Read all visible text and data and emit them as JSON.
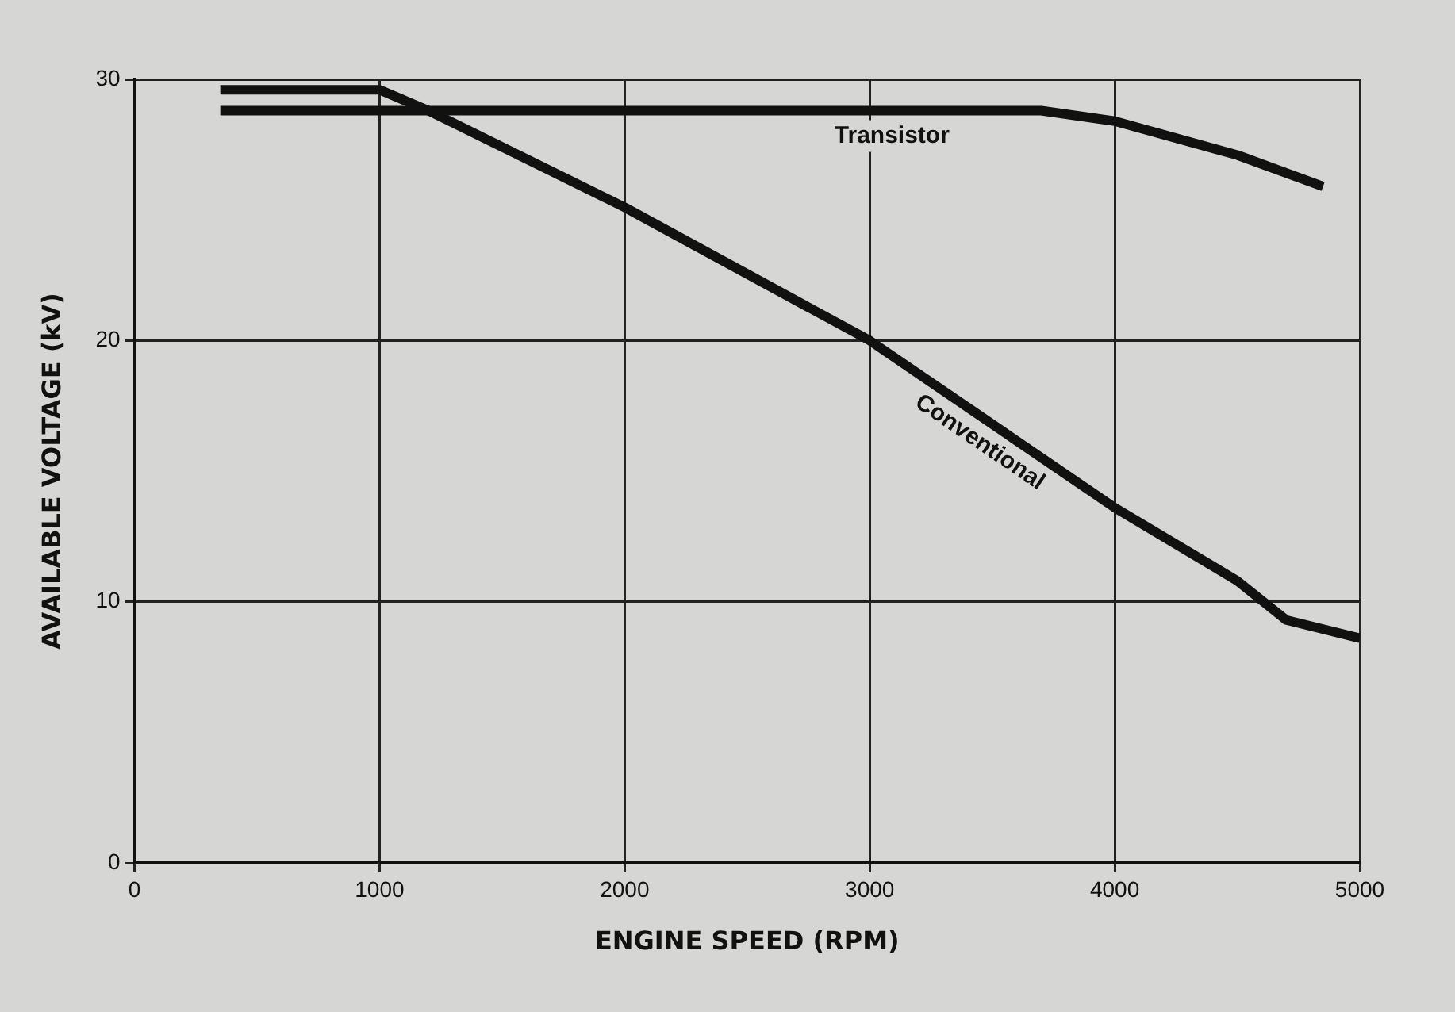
{
  "chart_data": {
    "type": "line",
    "xlabel": "ENGINE SPEED (RPM)",
    "ylabel": "AVAILABLE VOLTAGE (kV)",
    "xlim": [
      0,
      5000
    ],
    "xticks": [
      0,
      1000,
      2000,
      3000,
      4000,
      5000
    ],
    "ylim": [
      0,
      30
    ],
    "yticks": [
      0,
      10,
      20,
      30
    ],
    "grid": true,
    "legend": false,
    "marker": "none",
    "line_style": "solid",
    "series": [
      {
        "name": "Transistor",
        "color": "#111111",
        "x": [
          350,
          1000,
          2000,
          3000,
          3700,
          4000,
          4500,
          4850
        ],
        "values": [
          28.8,
          28.8,
          28.8,
          28.8,
          28.8,
          28.4,
          27.1,
          25.9
        ]
      },
      {
        "name": "Conventional",
        "color": "#111111",
        "x": [
          350,
          1000,
          1200,
          2000,
          3000,
          4000,
          4500,
          4700,
          5000
        ],
        "values": [
          29.6,
          29.6,
          28.8,
          25.1,
          20,
          13.6,
          10.8,
          9.3,
          8.6
        ]
      }
    ]
  }
}
